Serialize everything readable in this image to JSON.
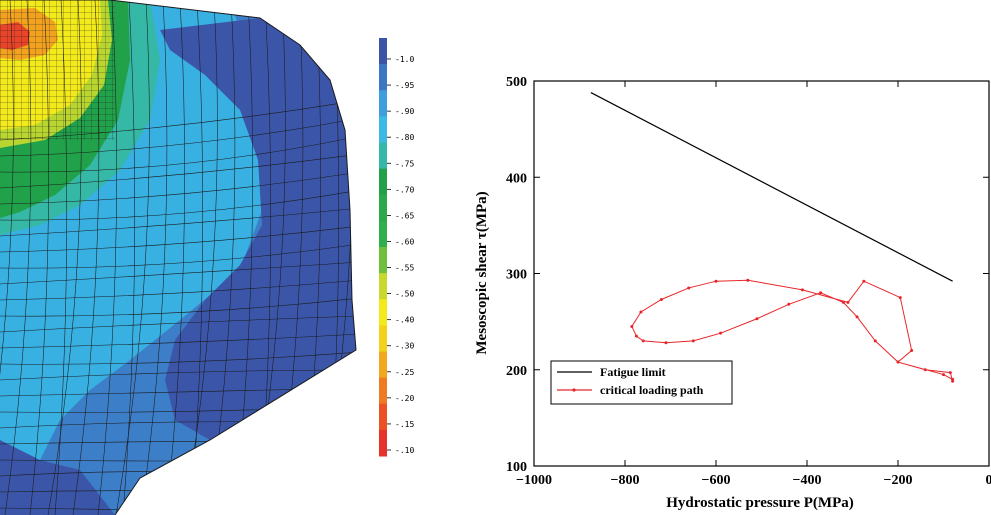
{
  "colorbar": {
    "labels": [
      "-1.0",
      "-.95",
      "-.90",
      "-.80",
      "-.75",
      "-.70",
      "-.65",
      "-.60",
      "-.55",
      "-.50",
      "-.40",
      "-.30",
      "-.25",
      "-.20",
      "-.15",
      "-.10"
    ],
    "colors": [
      "#3b54a8",
      "#3d76c4",
      "#3f9ede",
      "#3cb9e4",
      "#37b7a8",
      "#22a04a",
      "#2aa84a",
      "#30b04c",
      "#6fbf3e",
      "#c8d82c",
      "#f2ea1c",
      "#f5d21a",
      "#f2a81e",
      "#ee7a22",
      "#ea5226",
      "#e5322a"
    ]
  },
  "contour": {
    "region_colors": {
      "dark_blue": "#3b56a8",
      "mid_blue": "#3d7ec8",
      "light_blue": "#39b0e2",
      "teal": "#36b8a6",
      "green": "#21a14a",
      "yellow_green": "#b9d630",
      "yellow": "#f3ea1b",
      "orange": "#f2a21f",
      "red": "#e8442a"
    }
  },
  "chart_data": {
    "type": "line",
    "xlabel": "Hydrostatic pressure  P(MPa)",
    "ylabel": "Mesoscopic shear  τ(MPa)",
    "xlim": [
      -1000,
      0
    ],
    "ylim": [
      100,
      500
    ],
    "x_ticks": [
      -1000,
      -800,
      -600,
      -400,
      -200,
      0
    ],
    "x_tick_labels": [
      "−1000",
      "−800",
      "−600",
      "−400",
      "−200",
      "0"
    ],
    "y_ticks": [
      100,
      200,
      300,
      400,
      500
    ],
    "y_tick_labels": [
      "100",
      "200",
      "300",
      "400",
      "500"
    ],
    "grid": false,
    "legend_position": "bottom-left",
    "series": [
      {
        "name": "Fatigue limit",
        "color": "#000000",
        "marker": false,
        "points": [
          [
            -875,
            488
          ],
          [
            -80,
            292
          ]
        ]
      },
      {
        "name": "critical loading path",
        "color": "#e8262a",
        "marker": true,
        "points": [
          [
            -80,
            190
          ],
          [
            -100,
            195
          ],
          [
            -200,
            208
          ],
          [
            -170,
            220
          ],
          [
            -195,
            275
          ],
          [
            -275,
            292
          ],
          [
            -310,
            270
          ],
          [
            -410,
            283
          ],
          [
            -530,
            293
          ],
          [
            -600,
            292
          ],
          [
            -660,
            285
          ],
          [
            -720,
            273
          ],
          [
            -765,
            260
          ],
          [
            -785,
            245
          ],
          [
            -775,
            235
          ],
          [
            -760,
            230
          ],
          [
            -710,
            228
          ],
          [
            -650,
            230
          ],
          [
            -590,
            238
          ],
          [
            -510,
            253
          ],
          [
            -440,
            268
          ],
          [
            -370,
            280
          ],
          [
            -320,
            270
          ],
          [
            -290,
            255
          ],
          [
            -250,
            230
          ],
          [
            -200,
            208
          ],
          [
            -140,
            200
          ],
          [
            -85,
            197
          ],
          [
            -80,
            188
          ]
        ]
      }
    ]
  }
}
